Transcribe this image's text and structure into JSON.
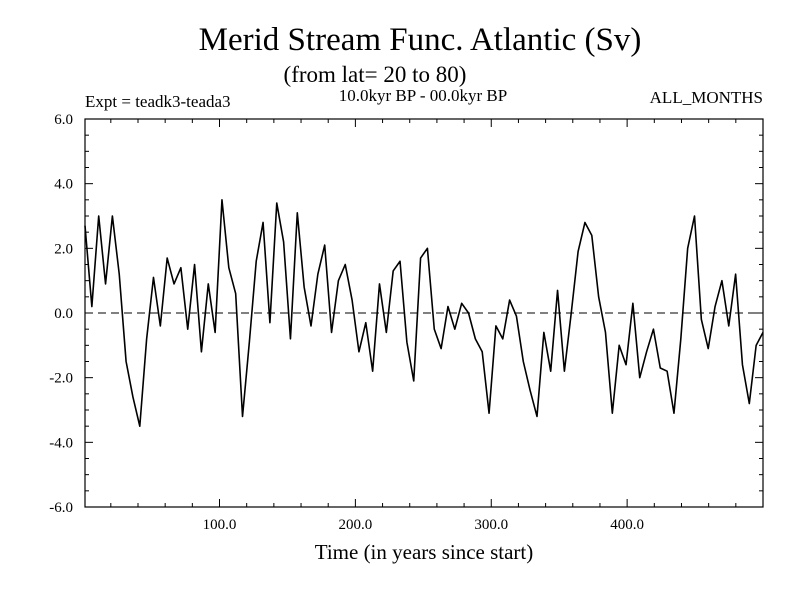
{
  "chart_data": {
    "type": "line",
    "title": "Merid Stream Func. Atlantic (Sv)",
    "subtitle": "(from lat= 20 to 80)",
    "experiment": "Expt = teadk3-teada3",
    "period": "10.0kyr BP - 00.0kyr BP",
    "season": "ALL_MONTHS",
    "xlabel": "Time (in years since start)",
    "ylabel": "",
    "xlim": [
      1,
      500
    ],
    "ylim": [
      -6,
      6
    ],
    "xticks": [
      100,
      200,
      300,
      400
    ],
    "xtick_labels": [
      "100.0",
      "200.0",
      "300.0",
      "400.0"
    ],
    "yticks": [
      -6,
      -4,
      -2,
      0,
      2,
      4,
      6
    ],
    "ytick_labels": [
      "-6.0",
      "-4.0",
      "-2.0",
      "0.0",
      "2.0",
      "4.0",
      "6.0"
    ],
    "zero_line": true,
    "grid": false,
    "series": [
      {
        "values": [
          2.7,
          0.2,
          3.0,
          0.9,
          3.0,
          1.2,
          -1.5,
          -2.6,
          -3.5,
          -0.8,
          1.1,
          -0.4,
          1.7,
          0.9,
          1.4,
          -0.5,
          1.5,
          -1.2,
          0.9,
          -0.6,
          3.5,
          1.4,
          0.6,
          -3.2,
          -0.9,
          1.6,
          2.8,
          -0.3,
          3.4,
          2.2,
          -0.8,
          3.1,
          0.8,
          -0.4,
          1.2,
          2.1,
          -0.6,
          1.0,
          1.5,
          0.4,
          -1.2,
          -0.3,
          -1.8,
          0.9,
          -0.6,
          1.3,
          1.6,
          -0.9,
          -2.1,
          1.7,
          2.0,
          -0.5,
          -1.1,
          0.2,
          -0.5,
          0.3,
          0.0,
          -0.8,
          -1.2,
          -3.1,
          -0.4,
          -0.8,
          0.4,
          -0.1,
          -1.5,
          -2.4,
          -3.2,
          -0.6,
          -1.8,
          0.7,
          -1.8,
          0.0,
          1.9,
          2.8,
          2.4,
          0.5,
          -0.6,
          -3.1,
          -1.0,
          -1.6,
          0.3,
          -2.0,
          -1.2,
          -0.5,
          -1.7,
          -1.8,
          -3.1,
          -0.8,
          2.0,
          3.0,
          -0.2,
          -1.1,
          0.2,
          1.0,
          -0.4,
          1.2,
          -1.6,
          -2.8,
          -1.0,
          -0.6
        ]
      }
    ]
  }
}
